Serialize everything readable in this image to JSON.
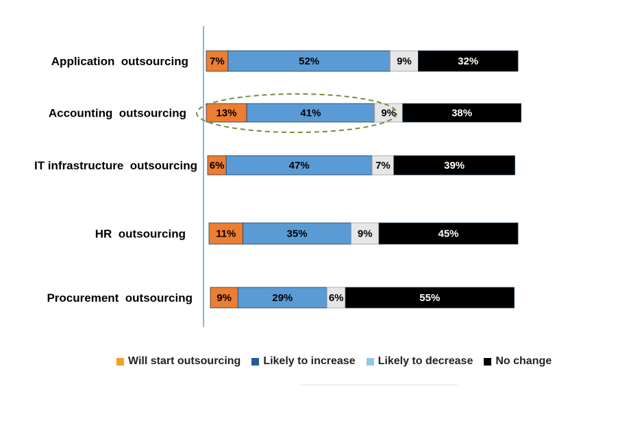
{
  "chart_data": {
    "type": "bar",
    "orientation": "horizontal",
    "stacked": true,
    "categories": [
      "Application  outsourcing",
      "Accounting  outsourcing",
      "IT infrastructure  outsourcing",
      "HR  outsourcing",
      "Procurement  outsourcing"
    ],
    "series": [
      {
        "name": "Will start outsourcing",
        "color": "#ED7D31",
        "values": [
          7,
          13,
          6,
          11,
          9
        ]
      },
      {
        "name": "Likely to increase",
        "color": "#5B9BD5",
        "values": [
          52,
          41,
          47,
          35,
          29
        ]
      },
      {
        "name": "Likely to decrease",
        "color": "#E7E6E6",
        "values": [
          9,
          9,
          7,
          9,
          6
        ]
      },
      {
        "name": "No change",
        "color": "#000000",
        "values": [
          32,
          38,
          39,
          45,
          55
        ]
      }
    ],
    "value_suffix": "%",
    "legend_colors": [
      "#F4A023",
      "#1F5C99",
      "#8FC7E8",
      "#000000"
    ],
    "legend_position": "bottom",
    "grid": false,
    "highlighted_category": "Accounting  outsourcing",
    "highlight_color": "#6B8E3A"
  }
}
